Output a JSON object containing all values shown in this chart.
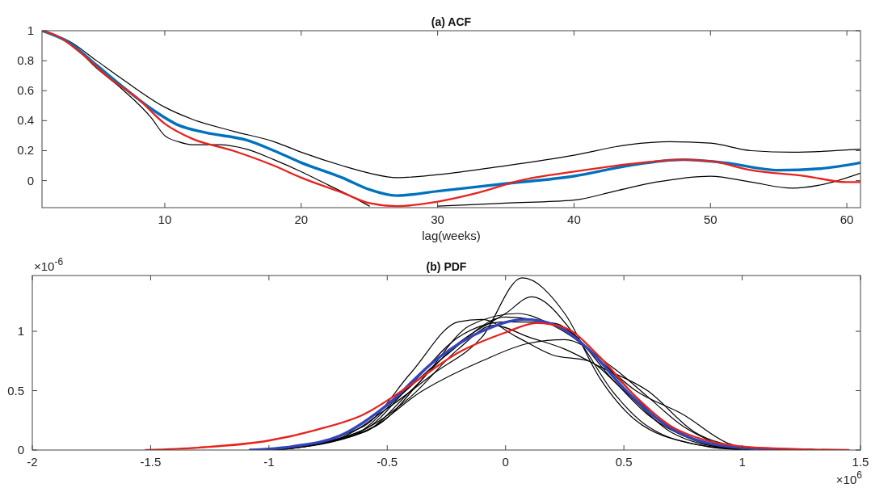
{
  "chart_data": [
    {
      "type": "line",
      "title": "(a) ACF",
      "xlabel": "lag(weeks)",
      "xlim": [
        1,
        61
      ],
      "ylim": [
        -0.18,
        1
      ],
      "xticks": [
        10,
        20,
        30,
        40,
        50,
        60
      ],
      "yticks": [
        0,
        0.2,
        0.4,
        0.6,
        0.8,
        1
      ],
      "series": [
        {
          "color": "#000000",
          "x": [
            1,
            3,
            5,
            7,
            10,
            12,
            15,
            18,
            20,
            23,
            25,
            27,
            30,
            35,
            40,
            44,
            47,
            50,
            53,
            56,
            61
          ],
          "values": [
            1,
            0.93,
            0.8,
            0.67,
            0.49,
            0.41,
            0.33,
            0.26,
            0.19,
            0.1,
            0.05,
            0.02,
            0.04,
            0.1,
            0.17,
            0.24,
            0.26,
            0.25,
            0.2,
            0.19,
            0.21
          ]
        },
        {
          "color": "#000000",
          "x": [
            1,
            3,
            5,
            7,
            9,
            10,
            11,
            12,
            14,
            16,
            18,
            20,
            22,
            24,
            25,
            27,
            30,
            35,
            40,
            43,
            46,
            50,
            53,
            56,
            58,
            61
          ],
          "values": [
            1,
            0.92,
            0.75,
            0.6,
            0.42,
            0.3,
            0.26,
            0.24,
            0.24,
            0.21,
            0.14,
            0.06,
            -0.03,
            -0.12,
            -0.17,
            null,
            -0.17,
            -0.15,
            -0.13,
            -0.07,
            -0.01,
            0.03,
            -0.01,
            -0.05,
            -0.03,
            0.05
          ]
        },
        {
          "color": "#0072bd",
          "x": [
            1,
            3,
            5,
            7,
            9,
            11,
            13,
            16,
            18,
            20,
            23,
            25,
            27,
            30,
            35,
            40,
            44,
            48,
            51,
            55,
            58,
            61
          ],
          "values": [
            1,
            0.92,
            0.77,
            0.62,
            0.48,
            0.37,
            0.32,
            0.27,
            0.2,
            0.12,
            0.02,
            -0.06,
            -0.1,
            -0.07,
            -0.02,
            0.03,
            0.1,
            0.14,
            0.12,
            0.07,
            0.08,
            0.12
          ]
        },
        {
          "color": "#e8221c",
          "x": [
            1,
            2,
            4,
            6,
            8,
            10,
            12,
            15,
            18,
            20,
            23,
            25,
            27,
            30,
            33,
            36,
            40,
            44,
            48,
            50,
            53,
            57,
            60,
            61
          ],
          "values": [
            1,
            0.97,
            0.84,
            0.68,
            0.55,
            0.38,
            0.28,
            0.2,
            0.1,
            0.02,
            -0.08,
            -0.15,
            -0.17,
            -0.14,
            -0.08,
            0,
            0.06,
            0.11,
            0.14,
            0.13,
            0.07,
            0.03,
            -0.01,
            -0.01
          ]
        }
      ]
    },
    {
      "type": "line",
      "title": "(b) PDF",
      "annotations": [
        "×10$^{-6}$",
        "×10$^{6}$"
      ],
      "xlim": [
        -2,
        1.5
      ],
      "ylim": [
        0,
        1.47
      ],
      "xticks": [
        -2,
        -1.5,
        -1,
        -0.5,
        0,
        0.5,
        1,
        1.5
      ],
      "yticks": [
        0,
        0.5,
        1
      ],
      "series": [
        {
          "color": "#000000",
          "x": [
            -0.98,
            -0.7,
            -0.5,
            -0.3,
            -0.1,
            0.07,
            0.25,
            0.4,
            0.55,
            0.8,
            0.98
          ],
          "values": [
            0,
            0.1,
            0.35,
            0.65,
            0.95,
            1.45,
            1.15,
            0.6,
            0.25,
            0.05,
            0.01
          ]
        },
        {
          "color": "#000000",
          "x": [
            -1.02,
            -0.6,
            -0.4,
            -0.2,
            0,
            0.11,
            0.3,
            0.45,
            0.6,
            0.85,
            1.02
          ],
          "values": [
            0,
            0.15,
            0.5,
            0.9,
            1.15,
            1.29,
            0.95,
            0.5,
            0.2,
            0.03,
            0
          ]
        },
        {
          "color": "#000000",
          "x": [
            -0.99,
            -0.6,
            -0.4,
            -0.2,
            -0.1,
            0.05,
            0.2,
            0.35,
            0.5,
            0.7,
            0.95
          ],
          "values": [
            0,
            0.2,
            0.65,
            1.08,
            1.1,
            0.95,
            0.8,
            0.75,
            0.5,
            0.15,
            0.01
          ]
        },
        {
          "color": "#000000",
          "x": [
            -0.96,
            -0.55,
            -0.35,
            -0.15,
            0.05,
            0.2,
            0.35,
            0.5,
            0.65,
            0.85,
            1.05
          ],
          "values": [
            0,
            0.2,
            0.6,
            1.05,
            1.15,
            1.05,
            0.85,
            0.55,
            0.25,
            0.05,
            0
          ]
        },
        {
          "color": "#000000",
          "x": [
            -0.97,
            -0.6,
            -0.35,
            -0.1,
            0.1,
            0.25,
            0.45,
            0.6,
            0.75,
            0.92
          ],
          "values": [
            0,
            0.15,
            0.5,
            0.75,
            0.9,
            0.93,
            0.7,
            0.45,
            0.2,
            0.03
          ]
        },
        {
          "color": "#000000",
          "x": [
            -1,
            -0.6,
            -0.4,
            -0.2,
            0,
            0.2,
            0.4,
            0.55,
            0.75,
            0.95,
            1.1
          ],
          "values": [
            0,
            0.17,
            0.55,
            0.95,
            1.08,
            1.07,
            0.75,
            0.5,
            0.3,
            0.05,
            0
          ]
        },
        {
          "color": "#000000",
          "x": [
            -0.94,
            -0.6,
            -0.4,
            -0.2,
            -0.05,
            0.1,
            0.25,
            0.4,
            0.6,
            0.8,
            1.01
          ],
          "values": [
            0.01,
            0.17,
            0.45,
            0.85,
            1.05,
            0.95,
            0.85,
            0.7,
            0.5,
            0.15,
            0.02
          ]
        },
        {
          "color": "#000000",
          "x": [
            -1.05,
            -0.65,
            -0.45,
            -0.25,
            0,
            0.25,
            0.45,
            0.6,
            0.8,
            0.99
          ],
          "values": [
            0,
            0.12,
            0.45,
            0.8,
            1.12,
            1.02,
            0.6,
            0.3,
            0.08,
            0
          ]
        },
        {
          "color": "#3344bb",
          "x": [
            -1.08,
            -0.9,
            -0.7,
            -0.5,
            -0.3,
            -0.1,
            0.08,
            0.2,
            0.35,
            0.5,
            0.65,
            0.8,
            1,
            1.3
          ],
          "values": [
            0,
            0.03,
            0.12,
            0.38,
            0.75,
            1,
            1.1,
            1.06,
            0.85,
            0.52,
            0.25,
            0.09,
            0.02,
            0
          ]
        },
        {
          "color": "#e8221c",
          "x": [
            -1.52,
            -1.3,
            -1,
            -0.8,
            -0.6,
            -0.4,
            -0.2,
            0,
            0.13,
            0.25,
            0.4,
            0.55,
            0.7,
            0.85,
            1,
            1.2,
            1.45
          ],
          "values": [
            0,
            0.02,
            0.08,
            0.17,
            0.3,
            0.55,
            0.82,
            0.99,
            1.07,
            1.03,
            0.78,
            0.45,
            0.2,
            0.08,
            0.03,
            0.01,
            0
          ]
        }
      ]
    }
  ]
}
